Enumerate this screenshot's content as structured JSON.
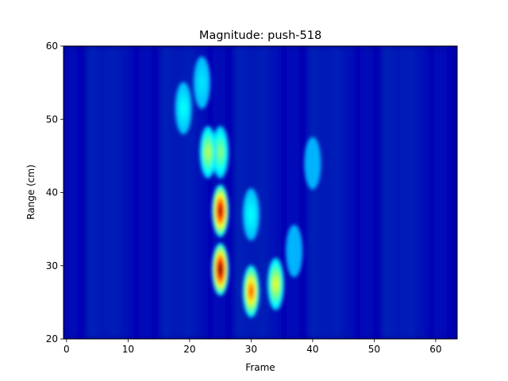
{
  "chart_data": {
    "type": "heatmap",
    "title": "Magnitude: push-518",
    "xlabel": "Frame",
    "ylabel": "Range (cm)",
    "xlim": [
      -0.5,
      63.5
    ],
    "ylim": [
      20,
      60
    ],
    "x_ticks": [
      0,
      10,
      20,
      30,
      40,
      50,
      60
    ],
    "y_ticks": [
      20,
      30,
      40,
      50,
      60
    ],
    "colormap": "jet",
    "grid": false,
    "legend": "none",
    "hotspots": [
      {
        "frame": 25,
        "range_cm": 29.5,
        "relative_magnitude": 1.0
      },
      {
        "frame": 25,
        "range_cm": 37.5,
        "relative_magnitude": 0.95
      },
      {
        "frame": 30,
        "range_cm": 26.5,
        "relative_magnitude": 0.78
      },
      {
        "frame": 34,
        "range_cm": 27.5,
        "relative_magnitude": 0.6
      },
      {
        "frame": 23,
        "range_cm": 45.5,
        "relative_magnitude": 0.55
      },
      {
        "frame": 25,
        "range_cm": 45.5,
        "relative_magnitude": 0.5
      },
      {
        "frame": 19,
        "range_cm": 51.5,
        "relative_magnitude": 0.38
      },
      {
        "frame": 22,
        "range_cm": 55.0,
        "relative_magnitude": 0.35
      },
      {
        "frame": 30,
        "range_cm": 37.0,
        "relative_magnitude": 0.38
      },
      {
        "frame": 37,
        "range_cm": 32.0,
        "relative_magnitude": 0.3
      },
      {
        "frame": 40,
        "range_cm": 44.0,
        "relative_magnitude": 0.3
      }
    ]
  }
}
